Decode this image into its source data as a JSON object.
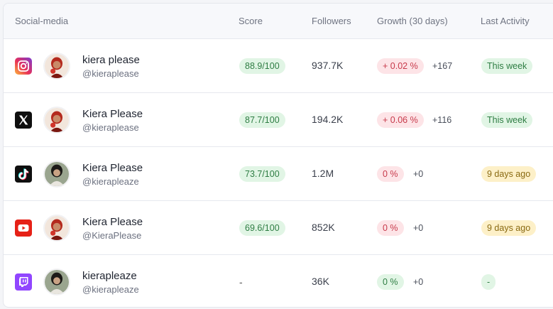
{
  "header": {
    "social": "Social-media",
    "score": "Score",
    "followers": "Followers",
    "growth": "Growth (30 days)",
    "activity": "Last Activity"
  },
  "rows": [
    {
      "platform_icon": "instagram-icon",
      "name": "kiera please",
      "handle": "@kieraplease",
      "score": "88.9/100",
      "followers": "937.7K",
      "growth_pct": "+ 0.02 %",
      "growth_delta": "+167",
      "activity": "This week",
      "growth_color": "#fde4e7",
      "activity_color": "#e1f5e5"
    },
    {
      "platform_icon": "x-icon",
      "name": "Kiera Please",
      "handle": "@kieraplease",
      "score": "87.7/100",
      "followers": "194.2K",
      "growth_pct": "+ 0.06 %",
      "growth_delta": "+116",
      "activity": "This week",
      "growth_color": "#fde4e7",
      "activity_color": "#e1f5e5"
    },
    {
      "platform_icon": "tiktok-icon",
      "name": "Kiera Please",
      "handle": "@kierapleaze",
      "score": "73.7/100",
      "followers": "1.2M",
      "growth_pct": "0 %",
      "growth_delta": "+0",
      "activity": "9 days ago",
      "growth_color": "#fde4e7",
      "activity_color": "#fdf0c8"
    },
    {
      "platform_icon": "youtube-icon",
      "name": "Kiera Please",
      "handle": "@KieraPlease",
      "score": "69.6/100",
      "followers": "852K",
      "growth_pct": "0 %",
      "growth_delta": "+0",
      "activity": "9 days ago",
      "growth_color": "#fde4e7",
      "activity_color": "#fdf0c8"
    },
    {
      "platform_icon": "twitch-icon",
      "name": "kierapleaze",
      "handle": "@kierapleaze",
      "score": "-",
      "followers": "36K",
      "growth_pct": "0 %",
      "growth_delta": "+0",
      "activity": "-",
      "growth_color": "#e1f5e5",
      "activity_color": "#e1f5e5"
    }
  ]
}
